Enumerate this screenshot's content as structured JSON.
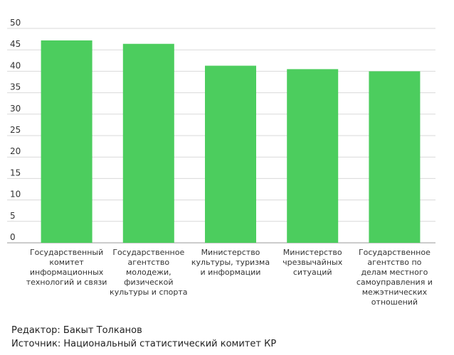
{
  "chart_data": {
    "type": "bar",
    "title": "",
    "xlabel": "",
    "ylabel": "",
    "ylim": [
      0,
      50
    ],
    "yticks": [
      0,
      5,
      10,
      15,
      20,
      25,
      30,
      35,
      40,
      45,
      50
    ],
    "grid": true,
    "categories": [
      [
        "Государственный",
        "комитет",
        "информационных",
        "технологий и связи"
      ],
      [
        "Государственное",
        "агентство",
        "молодежи,",
        "физической",
        "культуры и спорта"
      ],
      [
        "Министерство",
        "культуры, туризма",
        "и информации"
      ],
      [
        "Министерство",
        "чрезвычайных",
        "ситуаций"
      ],
      [
        "Государственное",
        "агентство по",
        "делам местного",
        "самоуправления и",
        "межэтнических",
        "отношений"
      ]
    ],
    "values": [
      47.2,
      46.4,
      41.3,
      40.5,
      40.0
    ],
    "colors": {
      "bar": "#4ccd5e",
      "grid": "#d9d9d9",
      "axis": "#999999"
    }
  },
  "footer": {
    "editor": "Редактор: Бакыт Толканов",
    "source": "Источник: Национальный статистический комитет КР"
  }
}
